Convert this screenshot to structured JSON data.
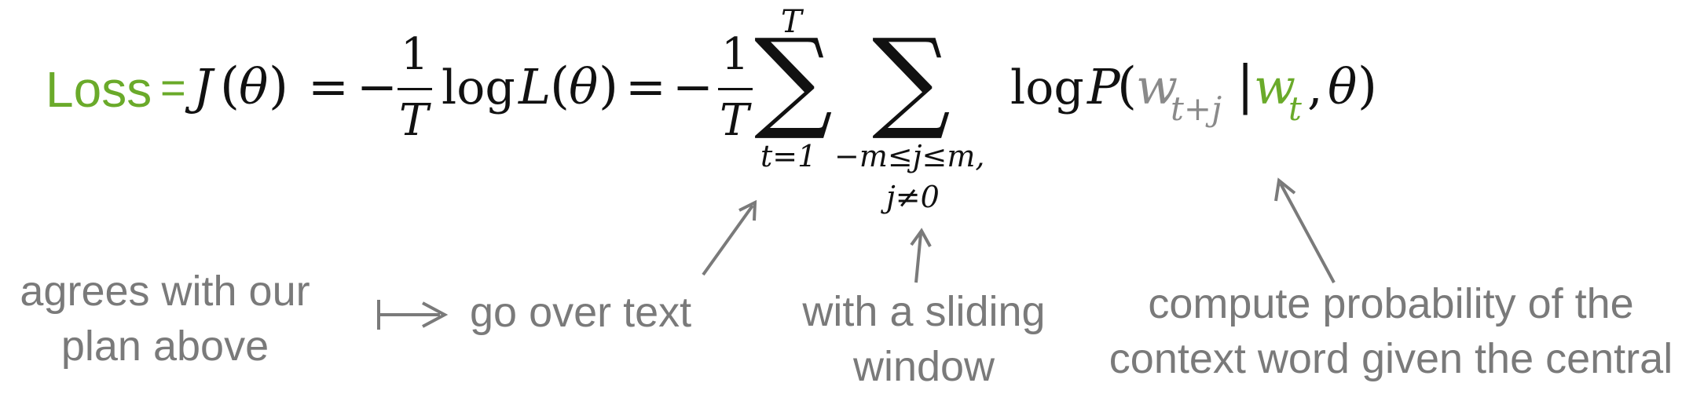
{
  "colors": {
    "accent": "#6aaa2a",
    "annotation": "#7a7a7a",
    "formula": "#111111"
  },
  "formula": {
    "loss_label": "Loss",
    "loss_eq": "=",
    "J": "J",
    "open1": "(",
    "theta1": "θ",
    "close1": ")",
    "eq1": "=",
    "minus1": "−",
    "frac1_num": "1",
    "frac1_den": "T",
    "log1": "log",
    "L": "L",
    "open2": "(",
    "theta2": "θ",
    "close2": ")",
    "eq2": "=",
    "minus2": "−",
    "frac2_num": "1",
    "frac2_den": "T",
    "sum1_upper": "T",
    "sum1_symbol": "∑",
    "sum1_lower": "t=1",
    "sum2_symbol": "∑",
    "sum2_lower_line1": "−m≤j≤m,",
    "sum2_lower_line2": "j≠0",
    "log2": "log",
    "P": "P",
    "open3": "(",
    "w_context": "w",
    "w_context_sub": "t+j",
    "bar": "|",
    "w_central": "w",
    "w_central_sub": "t",
    "comma": ",",
    "theta3": "θ",
    "close3": ")"
  },
  "annotations": {
    "agrees_line1": "agrees with our",
    "agrees_line2": "plan above",
    "go_over": "go over text",
    "sliding_line1": "with a sliding",
    "sliding_line2": "window",
    "compute_line1": "compute probability of the",
    "compute_line2": "context word given the central"
  }
}
